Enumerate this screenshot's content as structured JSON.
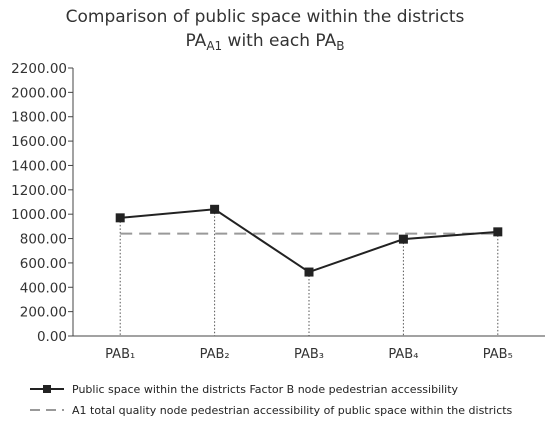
{
  "chart_data": {
    "type": "line",
    "title_line1": "Comparison of public space within the districts",
    "title_line2_base": "PA",
    "title_line2_sub": "A1",
    "title_line2_mid": " with each PA",
    "title_line2_sub2": "B",
    "categories": [
      "PAB₁",
      "PAB₂",
      "PAB₃",
      "PAB₄",
      "PAB₅"
    ],
    "ylim": [
      0,
      2200
    ],
    "yticks": [
      "0.00",
      "200.00",
      "400.00",
      "600.00",
      "800.00",
      "1000.00",
      "1200.00",
      "1400.00",
      "1600.00",
      "1800.00",
      "2000.00",
      "2200.00"
    ],
    "ytick_values": [
      0,
      200,
      400,
      600,
      800,
      1000,
      1200,
      1400,
      1600,
      1800,
      2000,
      2200
    ],
    "series": [
      {
        "name": "Public space within the districts Factor B node pedestrian accessibility",
        "values": [
          970,
          1040,
          525,
          795,
          855
        ],
        "color": "#222222",
        "style": "solid-square-markers"
      },
      {
        "name": "A1 total quality node pedestrian accessibility of public space within the districts",
        "values": [
          840,
          840,
          840,
          840,
          840
        ],
        "color": "#999999",
        "style": "dashed"
      }
    ],
    "legend_position": "bottom"
  }
}
